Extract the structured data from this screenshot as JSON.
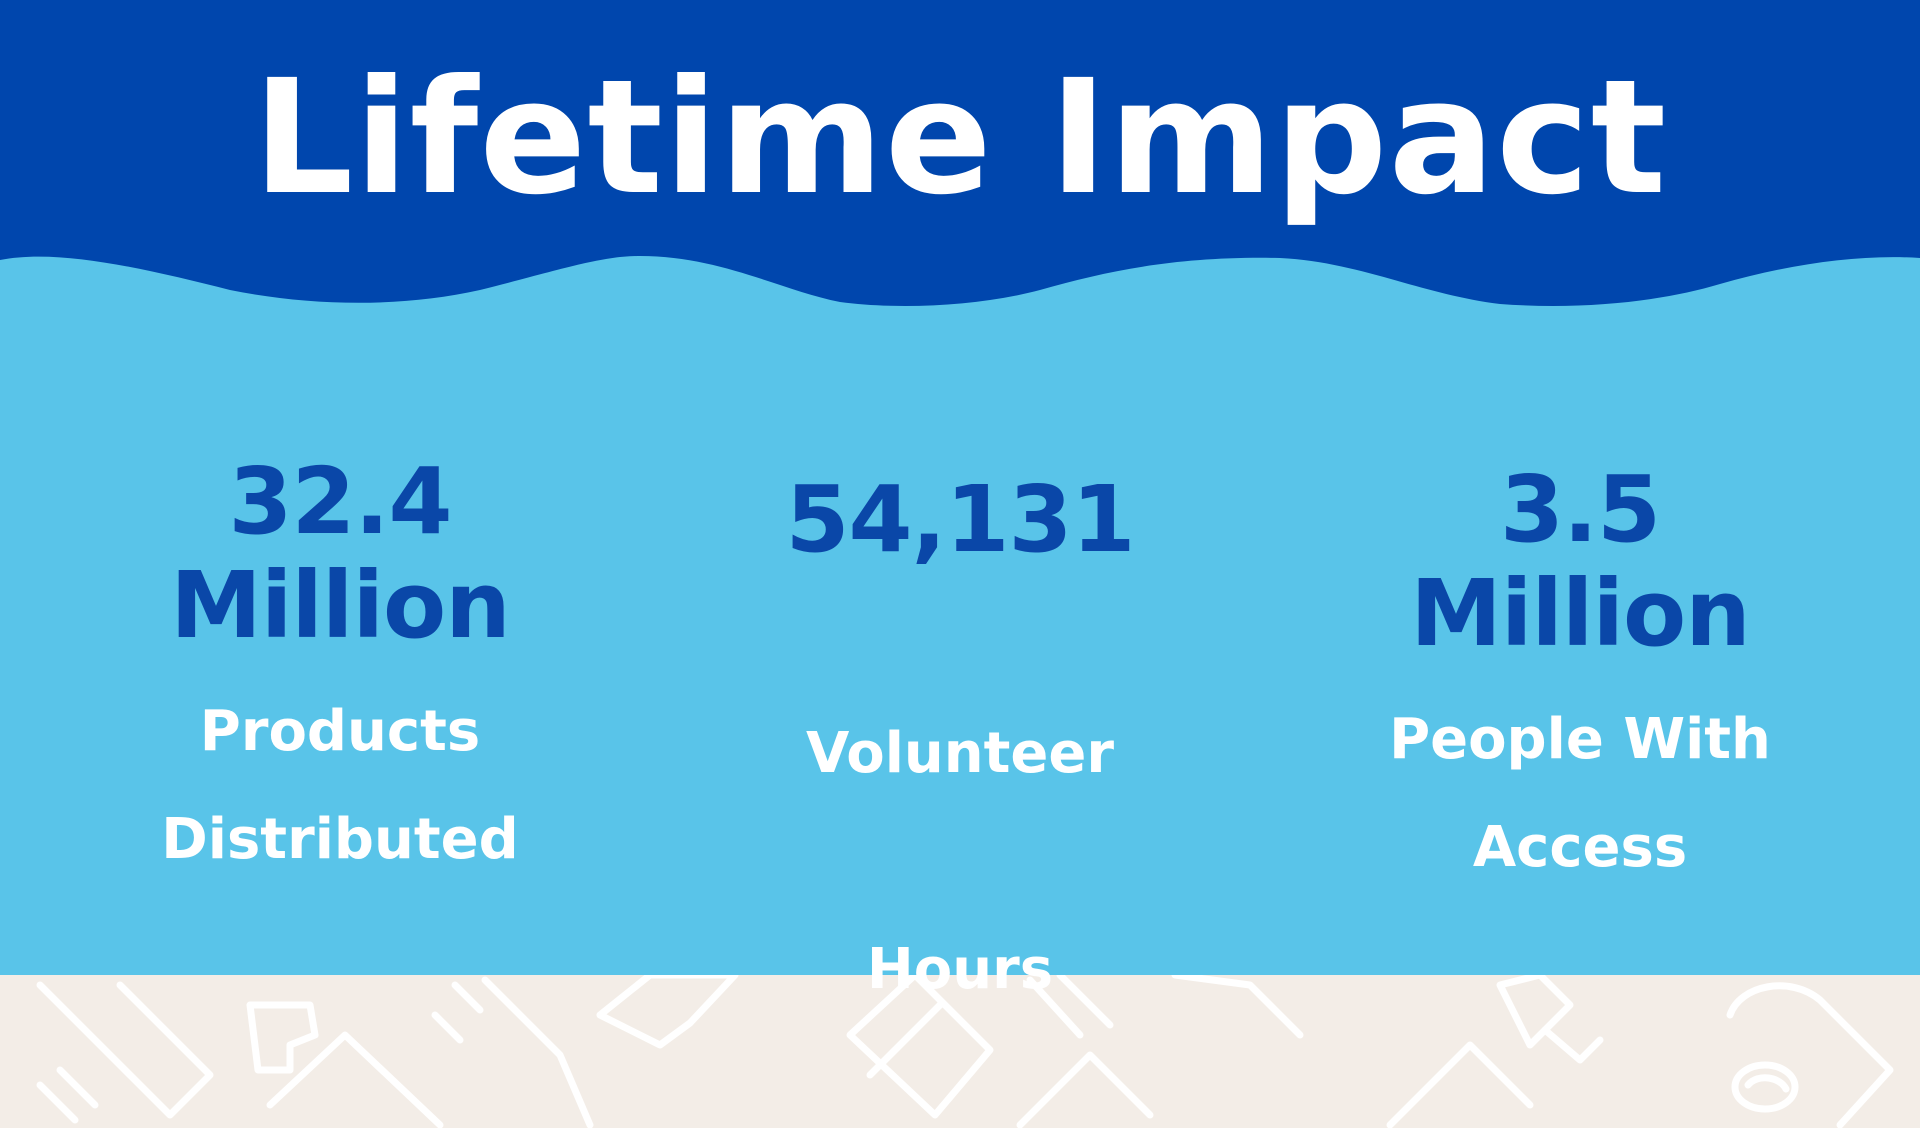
{
  "title": "Lifetime Impact",
  "colors": {
    "header_blue": "#0046ad",
    "panel_light_blue": "#59c4e9",
    "value_blue": "#0a47a8",
    "label_white": "#ffffff",
    "pattern_background": "#f3ede7"
  },
  "stats": [
    {
      "value_line1": "32.4",
      "value_line2": "Million",
      "label_line1": "Products",
      "label_line2": "Distributed"
    },
    {
      "value_line1": "54,131",
      "value_line2": "",
      "label_line1": "Volunteer",
      "label_line2": "Hours"
    },
    {
      "value_line1": "3.5",
      "value_line2": "Million",
      "label_line1": "People With",
      "label_line2": "Access"
    }
  ],
  "decorations": {
    "pattern_icons": [
      "toothbrush-icon",
      "toothpaste-icon",
      "soap-bar-icon",
      "razor-icon",
      "toilet-paper-icon"
    ]
  }
}
